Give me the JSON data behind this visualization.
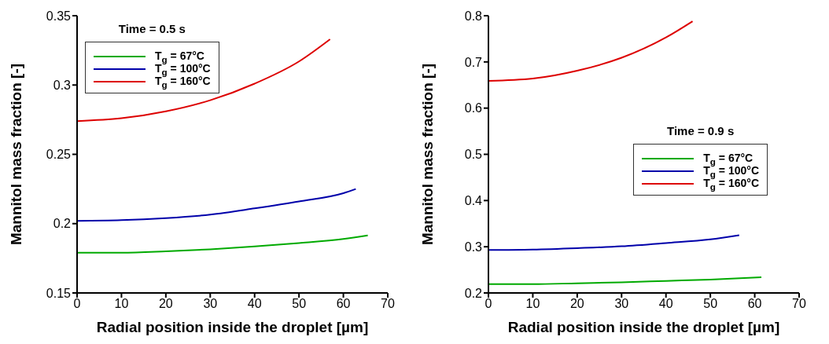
{
  "chart_data": [
    {
      "type": "line",
      "legend_title": "Time = 0.5 s",
      "xlabel": "Radial position inside the droplet [µm]",
      "ylabel": "Mannitol mass fraction [-]",
      "xlim": [
        0,
        70
      ],
      "xticks": [
        0,
        10,
        20,
        30,
        40,
        50,
        60,
        70
      ],
      "ylim": [
        0.15,
        0.35
      ],
      "yticks": [
        0.15,
        0.2,
        0.25,
        0.3,
        0.35
      ],
      "grid": false,
      "legend": "top left",
      "marker": "none",
      "line_style": "solid",
      "series": [
        {
          "name": "T$_{g}$ = 67°C",
          "color": "#00aa00",
          "x": [
            0,
            10,
            20,
            30,
            40,
            50,
            60,
            65.5
          ],
          "values": [
            0.179,
            0.179,
            0.18,
            0.1815,
            0.1835,
            0.186,
            0.189,
            0.1915
          ]
        },
        {
          "name": "T$_{g}$ = 100°C",
          "color": "#0000aa",
          "x": [
            0,
            10,
            20,
            30,
            40,
            50,
            60,
            62.8
          ],
          "values": [
            0.202,
            0.2025,
            0.204,
            0.2065,
            0.211,
            0.216,
            0.222,
            0.225
          ]
        },
        {
          "name": "T$_{g}$ = 160°C",
          "color": "#dd0000",
          "x": [
            0,
            10,
            20,
            30,
            40,
            50,
            57
          ],
          "values": [
            0.274,
            0.276,
            0.281,
            0.289,
            0.301,
            0.317,
            0.333
          ]
        }
      ]
    },
    {
      "type": "line",
      "legend_title": "Time = 0.9 s",
      "xlabel": "Radial position inside the droplet [µm]",
      "ylabel": "Mannitol mass fraction [-]",
      "xlim": [
        0,
        70
      ],
      "xticks": [
        0,
        10,
        20,
        30,
        40,
        50,
        60,
        70
      ],
      "ylim": [
        0.2,
        0.8
      ],
      "yticks": [
        0.2,
        0.3,
        0.4,
        0.5,
        0.6,
        0.7,
        0.8
      ],
      "grid": false,
      "legend": "right",
      "marker": "none",
      "line_style": "solid",
      "series": [
        {
          "name": "T$_{g}$ = 67°C",
          "color": "#00aa00",
          "x": [
            0,
            10,
            20,
            30,
            40,
            50,
            61.5
          ],
          "values": [
            0.219,
            0.219,
            0.221,
            0.223,
            0.226,
            0.229,
            0.234
          ]
        },
        {
          "name": "T$_{g}$ = 100°C",
          "color": "#0000aa",
          "x": [
            0,
            10,
            20,
            30,
            40,
            50,
            56.5
          ],
          "values": [
            0.293,
            0.294,
            0.297,
            0.301,
            0.308,
            0.316,
            0.325
          ]
        },
        {
          "name": "T$_{g}$ = 160°C",
          "color": "#dd0000",
          "x": [
            0,
            10,
            20,
            30,
            40,
            46
          ],
          "values": [
            0.659,
            0.664,
            0.681,
            0.709,
            0.753,
            0.788
          ]
        }
      ]
    }
  ]
}
